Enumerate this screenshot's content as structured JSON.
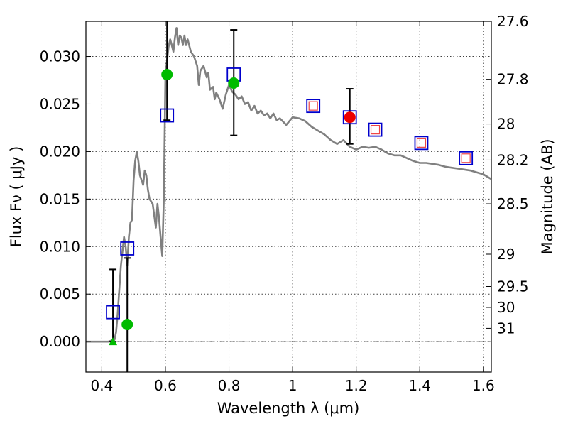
{
  "chart_data": {
    "type": "scatter",
    "title": "",
    "xlabel": "Wavelength  λ (μm)",
    "ylabel": "Flux  Fν  ( μJy )",
    "ylabel_right": "Magnitude (AB)",
    "xlim": [
      0.35,
      1.625
    ],
    "ylim": [
      -0.0032,
      0.0337
    ],
    "x_ticks": [
      0.4,
      0.6,
      0.8,
      1.0,
      1.2,
      1.4,
      1.6
    ],
    "x_tick_labels": [
      "0.4",
      "0.6",
      "0.8",
      "1",
      "1.2",
      "1.4",
      "1.6"
    ],
    "y_ticks": [
      0.0,
      0.005,
      0.01,
      0.015,
      0.02,
      0.025,
      0.03
    ],
    "y_tick_labels": [
      "0.000",
      "0.005",
      "0.010",
      "0.015",
      "0.020",
      "0.025",
      "0.030"
    ],
    "right_ticks": [
      {
        "flux": 0.0337,
        "label": "27.6"
      },
      {
        "flux": 0.0276,
        "label": "27.8"
      },
      {
        "flux": 0.0229,
        "label": "28"
      },
      {
        "flux": 0.0191,
        "label": "28.2"
      },
      {
        "flux": 0.0145,
        "label": "28.5"
      },
      {
        "flux": 0.0092,
        "label": "29"
      },
      {
        "flux": 0.0058,
        "label": "29.5"
      },
      {
        "flux": 0.0036,
        "label": "30"
      },
      {
        "flux": 0.0014,
        "label": "31"
      }
    ],
    "grid": true,
    "colors": {
      "model": "#808080",
      "model_squares": "#0000cc",
      "observed_circles": "#00bb00",
      "upper_limit": "#00bb00",
      "highlight_circle": "#ee0000",
      "inner_squares": "#ee4444",
      "errorbar": "#000000",
      "zero_line": "#000000"
    },
    "series": [
      {
        "name": "model spectrum",
        "kind": "line",
        "x": [
          0.35,
          0.4,
          0.42,
          0.43,
          0.44,
          0.445,
          0.45,
          0.46,
          0.47,
          0.475,
          0.48,
          0.485,
          0.49,
          0.495,
          0.5,
          0.505,
          0.51,
          0.515,
          0.52,
          0.53,
          0.535,
          0.54,
          0.545,
          0.55,
          0.56,
          0.57,
          0.575,
          0.58,
          0.585,
          0.59,
          0.595,
          0.6,
          0.605,
          0.61,
          0.615,
          0.62,
          0.625,
          0.63,
          0.635,
          0.64,
          0.645,
          0.65,
          0.655,
          0.66,
          0.665,
          0.67,
          0.68,
          0.69,
          0.7,
          0.705,
          0.71,
          0.72,
          0.73,
          0.735,
          0.74,
          0.75,
          0.755,
          0.76,
          0.77,
          0.78,
          0.79,
          0.8,
          0.81,
          0.82,
          0.83,
          0.84,
          0.85,
          0.86,
          0.87,
          0.88,
          0.89,
          0.9,
          0.91,
          0.92,
          0.93,
          0.94,
          0.95,
          0.96,
          0.98,
          1.0,
          1.02,
          1.04,
          1.06,
          1.08,
          1.1,
          1.12,
          1.14,
          1.16,
          1.18,
          1.2,
          1.22,
          1.24,
          1.26,
          1.28,
          1.3,
          1.32,
          1.34,
          1.36,
          1.38,
          1.4,
          1.42,
          1.44,
          1.46,
          1.48,
          1.5,
          1.52,
          1.54,
          1.56,
          1.58,
          1.6,
          1.625
        ],
        "y": [
          0.0,
          0.0,
          0.0,
          0.0001,
          0.0002,
          0.001,
          0.003,
          0.008,
          0.011,
          0.01,
          0.008,
          0.011,
          0.0125,
          0.0128,
          0.017,
          0.019,
          0.02,
          0.019,
          0.0175,
          0.0165,
          0.018,
          0.0175,
          0.016,
          0.015,
          0.0145,
          0.012,
          0.0145,
          0.013,
          0.011,
          0.009,
          0.015,
          0.028,
          0.0295,
          0.031,
          0.0318,
          0.0312,
          0.0305,
          0.032,
          0.033,
          0.0312,
          0.0322,
          0.032,
          0.0312,
          0.0322,
          0.0312,
          0.0318,
          0.0305,
          0.03,
          0.029,
          0.027,
          0.0285,
          0.029,
          0.0278,
          0.0283,
          0.0265,
          0.0268,
          0.0255,
          0.0262,
          0.0255,
          0.0245,
          0.026,
          0.027,
          0.0263,
          0.026,
          0.0255,
          0.0258,
          0.025,
          0.0252,
          0.0243,
          0.0248,
          0.024,
          0.0243,
          0.0238,
          0.024,
          0.0235,
          0.024,
          0.0233,
          0.0235,
          0.0228,
          0.0236,
          0.0235,
          0.0232,
          0.0226,
          0.0222,
          0.0218,
          0.0212,
          0.0208,
          0.0212,
          0.0205,
          0.0202,
          0.0205,
          0.0204,
          0.0205,
          0.0202,
          0.0198,
          0.0196,
          0.0196,
          0.0193,
          0.019,
          0.0188,
          0.0188,
          0.0187,
          0.0186,
          0.0184,
          0.0183,
          0.0182,
          0.0181,
          0.018,
          0.0178,
          0.0176,
          0.0171
        ]
      },
      {
        "name": "model photometry",
        "kind": "square",
        "x": [
          0.435,
          0.48,
          0.605,
          0.815,
          1.065,
          1.18,
          1.26,
          1.405,
          1.545
        ],
        "y": [
          0.0031,
          0.0098,
          0.0238,
          0.0281,
          0.0248,
          0.0236,
          0.0223,
          0.0209,
          0.0193
        ]
      },
      {
        "name": "observed flux",
        "kind": "circle",
        "x": [
          0.48,
          0.605,
          0.815
        ],
        "y": [
          0.0018,
          0.0281,
          0.0272
        ],
        "err_low": [
          0.0336,
          0.0048,
          0.0055
        ],
        "err_high": [
          0.007,
          0.008,
          0.0056
        ]
      },
      {
        "name": "upper limit",
        "kind": "triangle",
        "x": [
          0.435
        ],
        "y": [
          0.0
        ],
        "err_high": [
          0.0076
        ]
      },
      {
        "name": "highlighted observation",
        "kind": "circle",
        "x": [
          1.18
        ],
        "y": [
          0.0236
        ],
        "err_low": [
          0.0028
        ],
        "err_high": [
          0.003
        ]
      },
      {
        "name": "observed near-IR",
        "kind": "inner-square",
        "x": [
          1.065,
          1.26,
          1.405,
          1.545
        ],
        "y": [
          0.0248,
          0.0223,
          0.0209,
          0.0193
        ]
      }
    ]
  }
}
